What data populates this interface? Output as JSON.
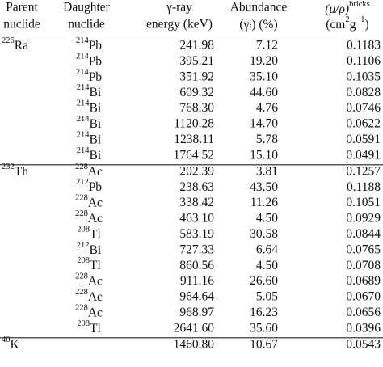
{
  "header": {
    "parent": [
      "Parent",
      "nuclide"
    ],
    "daughter": [
      "Daughter",
      "nuclide"
    ],
    "energy": [
      "γ-ray",
      "energy (keV)"
    ],
    "abundance": {
      "line1": "Abundance",
      "line2": [
        "(γ",
        "i",
        ") (%)"
      ]
    },
    "attenuation": {
      "line1": [
        "(μ/ρ)",
        "bricks"
      ],
      "line2": [
        "(cm",
        "2",
        "g",
        "−1",
        ")"
      ]
    }
  },
  "groups": [
    {
      "parent": {
        "mass": "226",
        "element": "Ra"
      },
      "rows": [
        {
          "daughter": {
            "mass": "214",
            "element": "Pb"
          },
          "energy": "241.98",
          "abundance": "7.12",
          "attenuation": "0.1183"
        },
        {
          "daughter": {
            "mass": "214",
            "element": "Pb"
          },
          "energy": "395.21",
          "abundance": "19.20",
          "attenuation": "0.1106"
        },
        {
          "daughter": {
            "mass": "214",
            "element": "Pb"
          },
          "energy": "351.92",
          "abundance": "35.10",
          "attenuation": "0.1035"
        },
        {
          "daughter": {
            "mass": "214",
            "element": "Bi"
          },
          "energy": "609.32",
          "abundance": "44.60",
          "attenuation": "0.0828"
        },
        {
          "daughter": {
            "mass": "214",
            "element": "Bi"
          },
          "energy": "768.30",
          "abundance": "4.76",
          "attenuation": "0.0746"
        },
        {
          "daughter": {
            "mass": "214",
            "element": "Bi"
          },
          "energy": "1120.28",
          "abundance": "14.70",
          "attenuation": "0.0622"
        },
        {
          "daughter": {
            "mass": "214",
            "element": "Bi"
          },
          "energy": "1238.11",
          "abundance": "5.78",
          "attenuation": "0.0591"
        },
        {
          "daughter": {
            "mass": "214",
            "element": "Bi"
          },
          "energy": "1764.52",
          "abundance": "15.10",
          "attenuation": "0.0491"
        }
      ]
    },
    {
      "parent": {
        "mass": "232",
        "element": "Th"
      },
      "rows": [
        {
          "daughter": {
            "mass": "228",
            "element": "Ac"
          },
          "energy": "202.39",
          "abundance": "3.81",
          "attenuation": "0.1257"
        },
        {
          "daughter": {
            "mass": "212",
            "element": "Pb"
          },
          "energy": "238.63",
          "abundance": "43.50",
          "attenuation": "0.1188"
        },
        {
          "daughter": {
            "mass": "228",
            "element": "Ac"
          },
          "energy": "338.42",
          "abundance": "11.26",
          "attenuation": "0.1051"
        },
        {
          "daughter": {
            "mass": "228",
            "element": "Ac"
          },
          "energy": "463.10",
          "abundance": "4.50",
          "attenuation": "0.0929"
        },
        {
          "daughter": {
            "mass": "208",
            "element": "Tl"
          },
          "energy": "583.19",
          "abundance": "30.58",
          "attenuation": "0.0844"
        },
        {
          "daughter": {
            "mass": "212",
            "element": "Bi"
          },
          "energy": "727.33",
          "abundance": "6.64",
          "attenuation": "0.0765"
        },
        {
          "daughter": {
            "mass": "208",
            "element": "Tl"
          },
          "energy": "860.56",
          "abundance": "4.50",
          "attenuation": "0.0708"
        },
        {
          "daughter": {
            "mass": "228",
            "element": "Ac"
          },
          "energy": "911.16",
          "abundance": "26.60",
          "attenuation": "0.0689"
        },
        {
          "daughter": {
            "mass": "228",
            "element": "Ac"
          },
          "energy": "964.64",
          "abundance": "5.05",
          "attenuation": "0.0670"
        },
        {
          "daughter": {
            "mass": "228",
            "element": "Ac"
          },
          "energy": "968.97",
          "abundance": "16.23",
          "attenuation": "0.0656"
        },
        {
          "daughter": {
            "mass": "208",
            "element": "Tl"
          },
          "energy": "2641.60",
          "abundance": "35.60",
          "attenuation": "0.0396"
        }
      ]
    },
    {
      "parent": {
        "mass": "40",
        "element": "K"
      },
      "rows": [
        {
          "energy": "1460.80",
          "abundance": "10.67",
          "attenuation": "0.0543"
        }
      ]
    }
  ]
}
